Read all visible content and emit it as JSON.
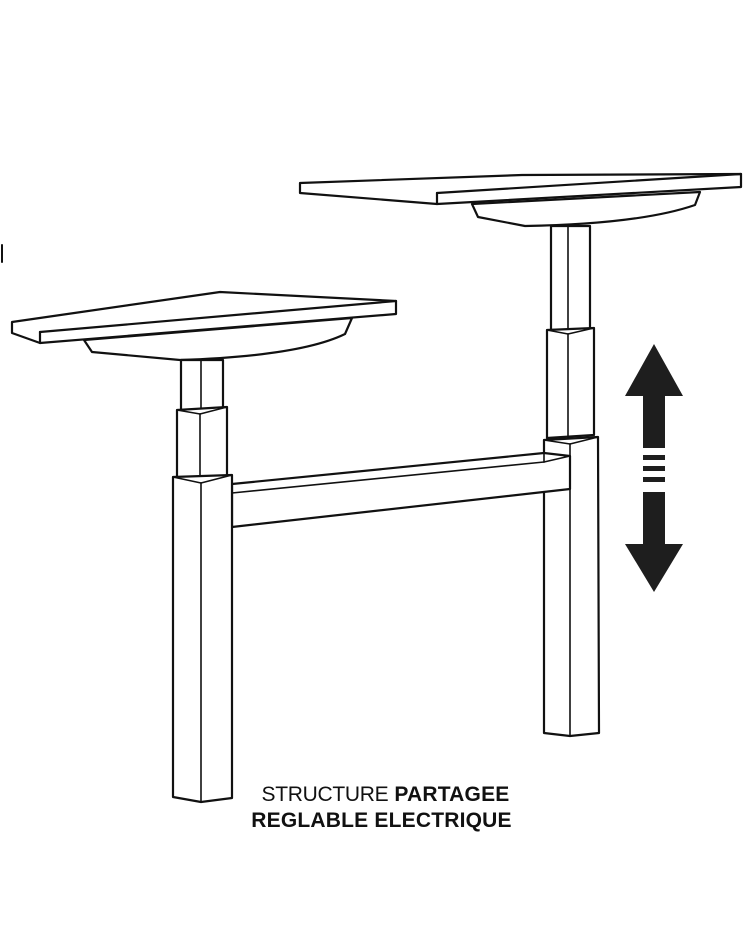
{
  "caption": {
    "line1_light": "STRUCTURE",
    "line1_bold": "PARTAGEE",
    "line2_bold": "REGLABLE ELECTRIQUE"
  },
  "icons": {
    "height_adjust": "double-headed-vertical-arrow-icon"
  },
  "colors": {
    "stroke": "#111111",
    "background": "#ffffff",
    "arrow_fill": "#1e1e1e"
  }
}
